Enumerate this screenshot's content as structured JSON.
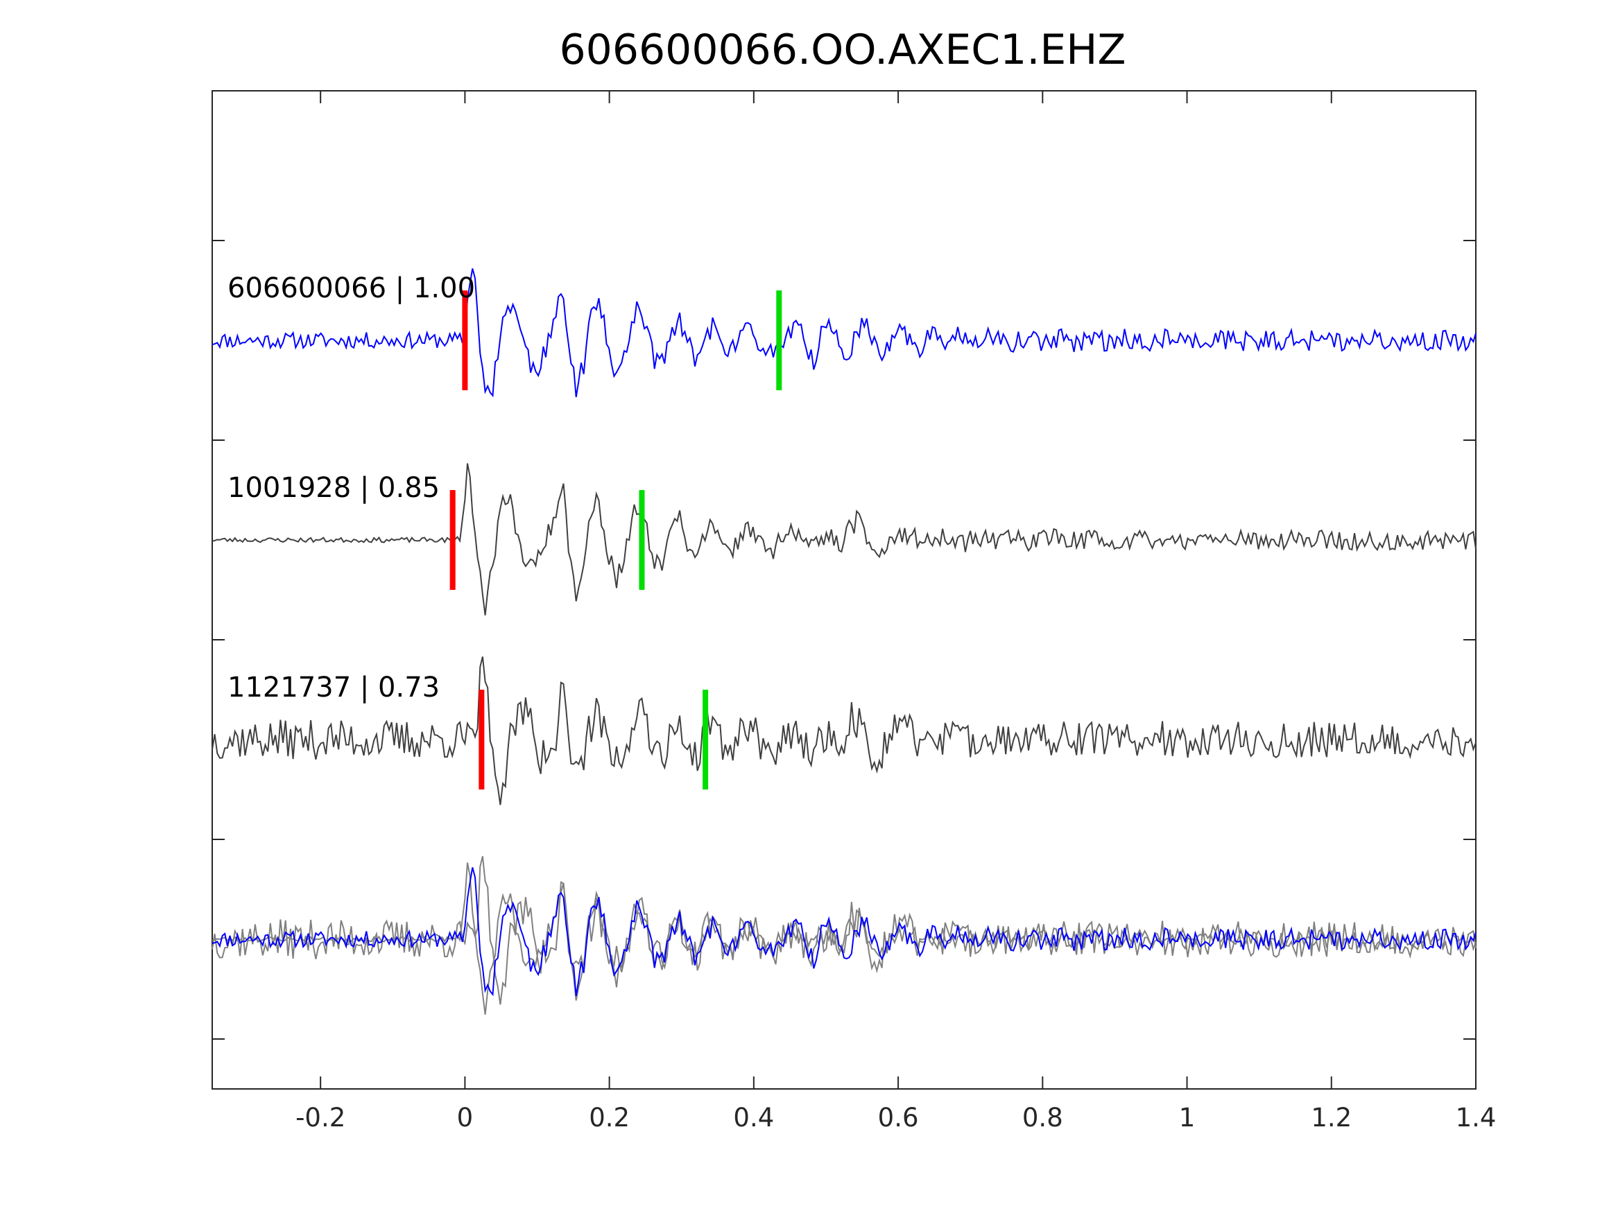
{
  "chart_data": {
    "type": "line",
    "title": "606600066.OO.AXEC1.EHZ",
    "xlabel": "",
    "ylabel": "",
    "xlim": [
      -0.35,
      1.4
    ],
    "xticks": [
      -0.2,
      0,
      0.2,
      0.4,
      0.6,
      0.8,
      1,
      1.2,
      1.4
    ],
    "xtick_labels": [
      "-0.2",
      "0",
      "0.2",
      "0.4",
      "0.6",
      "0.8",
      "1",
      "1.2",
      "1.4"
    ],
    "ylim": [
      0,
      5
    ],
    "yticks": [
      0.25,
      1.25,
      2.25,
      3.25,
      4.25
    ],
    "grid": false,
    "legend": "none",
    "colors": {
      "main": "#0000ff",
      "other": "#404040",
      "overlay_other": "#808080",
      "p_marker": "#ff0000",
      "s_marker": "#00dd00",
      "axis": "#262626"
    },
    "traces": [
      {
        "id": "606600066",
        "label": "606600066 | 1.00",
        "baseline": 3.75,
        "color": "main",
        "p_pick": 0.0,
        "s_pick": 0.435,
        "seed": 11,
        "noise_pre": 0.04,
        "noise_post": 0.05,
        "arrivals": [
          {
            "t0": -0.005,
            "amp": 0.45,
            "freq": 17,
            "decay": 0.08
          },
          {
            "t0": 0.12,
            "amp": 0.22,
            "freq": 19,
            "decay": 0.18
          },
          {
            "t0": 0.45,
            "amp": 0.09,
            "freq": 22,
            "decay": 0.2
          }
        ]
      },
      {
        "id": "1001928",
        "label": "1001928 | 0.85",
        "baseline": 2.75,
        "color": "other",
        "p_pick": -0.017,
        "s_pick": 0.245,
        "seed": 23,
        "noise_pre": 0.012,
        "noise_post": 0.05,
        "arrivals": [
          {
            "t0": -0.01,
            "amp": 0.45,
            "freq": 17,
            "decay": 0.08
          },
          {
            "t0": 0.12,
            "amp": 0.22,
            "freq": 19,
            "decay": 0.22
          },
          {
            "t0": 0.52,
            "amp": 0.14,
            "freq": 12,
            "decay": 0.06
          }
        ]
      },
      {
        "id": "1121737",
        "label": "1121737 | 0.73",
        "baseline": 1.75,
        "color": "other",
        "p_pick": 0.023,
        "s_pick": 0.333,
        "seed": 37,
        "noise_pre": 0.1,
        "noise_post": 0.09,
        "arrivals": [
          {
            "t0": 0.01,
            "amp": 0.45,
            "freq": 17,
            "decay": 0.08
          },
          {
            "t0": 0.12,
            "amp": 0.22,
            "freq": 19,
            "decay": 0.2
          },
          {
            "t0": 0.52,
            "amp": 0.2,
            "freq": 14,
            "decay": 0.05
          }
        ]
      }
    ],
    "overlay": {
      "baseline": 0.75,
      "series": [
        "606600066",
        "1001928",
        "1121737"
      ]
    }
  }
}
